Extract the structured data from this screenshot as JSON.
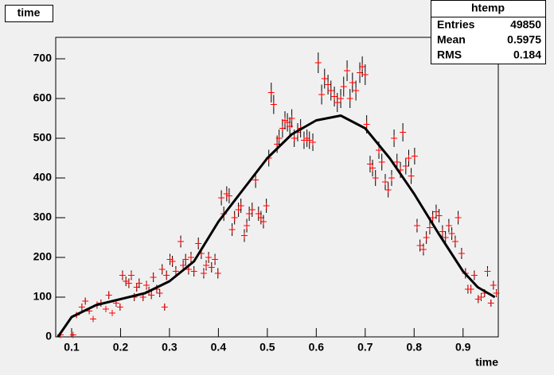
{
  "chart_data": {
    "type": "scatter",
    "title": "time",
    "x_label": "time",
    "xlim": [
      0.0675,
      0.972
    ],
    "ylim": [
      0,
      754
    ],
    "xticks": [
      0.1,
      0.2,
      0.3,
      0.4,
      0.5,
      0.6,
      0.7,
      0.8,
      0.9
    ],
    "yticks": [
      0,
      100,
      200,
      300,
      400,
      500,
      600,
      700
    ],
    "color": "#ff0000",
    "error_color": "#000000",
    "x": [
      0.077,
      0.103,
      0.11,
      0.121,
      0.128,
      0.136,
      0.144,
      0.152,
      0.16,
      0.17,
      0.176,
      0.183,
      0.191,
      0.199,
      0.204,
      0.211,
      0.217,
      0.222,
      0.228,
      0.233,
      0.238,
      0.246,
      0.253,
      0.258,
      0.263,
      0.267,
      0.274,
      0.28,
      0.285,
      0.29,
      0.294,
      0.301,
      0.306,
      0.313,
      0.323,
      0.328,
      0.333,
      0.339,
      0.344,
      0.35,
      0.359,
      0.365,
      0.37,
      0.375,
      0.38,
      0.386,
      0.393,
      0.399,
      0.406,
      0.411,
      0.417,
      0.422,
      0.428,
      0.433,
      0.441,
      0.446,
      0.453,
      0.458,
      0.463,
      0.469,
      0.476,
      0.482,
      0.487,
      0.492,
      0.498,
      0.503,
      0.508,
      0.513,
      0.52,
      0.524,
      0.531,
      0.536,
      0.541,
      0.546,
      0.55,
      0.555,
      0.562,
      0.568,
      0.575,
      0.581,
      0.586,
      0.593,
      0.604,
      0.611,
      0.617,
      0.624,
      0.63,
      0.637,
      0.643,
      0.65,
      0.656,
      0.663,
      0.669,
      0.674,
      0.681,
      0.689,
      0.694,
      0.7,
      0.703,
      0.71,
      0.715,
      0.721,
      0.728,
      0.734,
      0.741,
      0.747,
      0.754,
      0.759,
      0.765,
      0.772,
      0.777,
      0.783,
      0.789,
      0.794,
      0.801,
      0.806,
      0.812,
      0.819,
      0.825,
      0.832,
      0.838,
      0.845,
      0.851,
      0.858,
      0.864,
      0.871,
      0.877,
      0.884,
      0.89,
      0.897,
      0.905,
      0.91,
      0.916,
      0.923,
      0.931,
      0.937,
      0.944,
      0.95,
      0.957,
      0.962,
      0.968
    ],
    "values": [
      5,
      5,
      55,
      75,
      90,
      65,
      45,
      80,
      85,
      70,
      105,
      60,
      85,
      75,
      155,
      140,
      135,
      155,
      100,
      125,
      135,
      100,
      130,
      115,
      105,
      150,
      120,
      110,
      170,
      75,
      155,
      195,
      190,
      165,
      240,
      180,
      195,
      170,
      200,
      165,
      235,
      210,
      160,
      180,
      200,
      175,
      195,
      160,
      350,
      310,
      360,
      355,
      270,
      300,
      320,
      330,
      255,
      280,
      310,
      320,
      395,
      310,
      300,
      290,
      330,
      450,
      615,
      585,
      485,
      500,
      525,
      545,
      540,
      530,
      550,
      500,
      515,
      525,
      495,
      500,
      495,
      490,
      690,
      610,
      650,
      635,
      620,
      605,
      590,
      600,
      630,
      670,
      600,
      640,
      620,
      665,
      680,
      660,
      535,
      435,
      425,
      400,
      470,
      440,
      390,
      370,
      400,
      500,
      440,
      420,
      515,
      430,
      450,
      405,
      455,
      280,
      230,
      220,
      250,
      275,
      300,
      315,
      305,
      265,
      250,
      280,
      260,
      240,
      300,
      210,
      160,
      120,
      120,
      155,
      95,
      100,
      110,
      165,
      85,
      130,
      110
    ],
    "errors": [
      3,
      3,
      7,
      9,
      9,
      8,
      7,
      9,
      9,
      8,
      10,
      8,
      9,
      9,
      12,
      12,
      12,
      12,
      10,
      11,
      12,
      10,
      11,
      11,
      10,
      12,
      11,
      10,
      13,
      9,
      12,
      14,
      14,
      13,
      15,
      13,
      14,
      13,
      14,
      13,
      15,
      14,
      13,
      13,
      14,
      13,
      14,
      13,
      19,
      18,
      19,
      19,
      16,
      17,
      18,
      18,
      16,
      17,
      18,
      18,
      20,
      18,
      17,
      17,
      18,
      21,
      25,
      24,
      22,
      22,
      23,
      23,
      23,
      23,
      23,
      22,
      23,
      23,
      22,
      22,
      22,
      22,
      26,
      25,
      25,
      25,
      25,
      25,
      24,
      24,
      25,
      26,
      24,
      25,
      25,
      26,
      26,
      26,
      23,
      21,
      21,
      20,
      22,
      21,
      20,
      19,
      20,
      22,
      21,
      20,
      23,
      21,
      21,
      20,
      21,
      17,
      15,
      15,
      16,
      17,
      17,
      18,
      17,
      16,
      16,
      17,
      16,
      15,
      17,
      14,
      13,
      11,
      11,
      12,
      10,
      10,
      10,
      13,
      9,
      11,
      10
    ],
    "fit": {
      "color": "#000000",
      "x": [
        0.072,
        0.1,
        0.15,
        0.2,
        0.25,
        0.3,
        0.35,
        0.4,
        0.45,
        0.5,
        0.55,
        0.6,
        0.65,
        0.7,
        0.75,
        0.8,
        0.85,
        0.9,
        0.93,
        0.965
      ],
      "values": [
        0,
        50,
        80,
        95,
        110,
        140,
        190,
        290,
        370,
        450,
        510,
        545,
        557,
        525,
        450,
        360,
        260,
        165,
        125,
        100
      ]
    },
    "stats": {
      "title": "htemp",
      "rows": [
        {
          "label": "Entries",
          "value": 49850
        },
        {
          "label": "Mean",
          "value": 0.5975
        },
        {
          "label": "RMS",
          "value": 0.184
        }
      ]
    }
  }
}
